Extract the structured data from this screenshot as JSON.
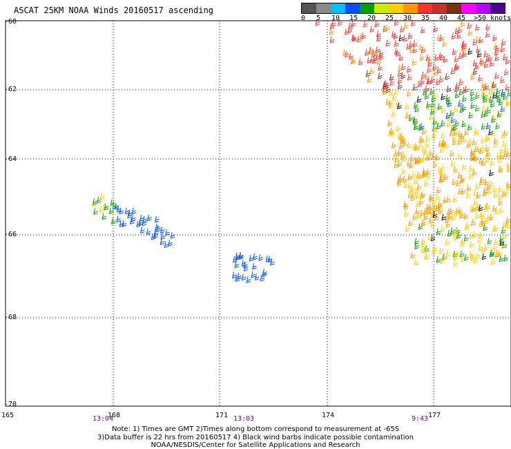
{
  "title": "ASCAT 25KM NOAA Winds 20160517 ascending",
  "colors": {
    "bands": [
      "#555555",
      "#8a8a8a",
      "#00bfff",
      "#0050ff",
      "#00a000",
      "#c8ee00",
      "#ffd000",
      "#ff9800",
      "#ff3030",
      "#c83030",
      "#7a3010",
      "#ff00ff",
      "#b800ff",
      "#50008a"
    ],
    "contamination": "#000000",
    "grid": "#000000"
  },
  "scale": {
    "labels": [
      "0",
      "5",
      "10",
      "15",
      "20",
      "25",
      "30",
      "35",
      "40",
      "45",
      ">50 knots"
    ],
    "unit": "knots"
  },
  "axes": {
    "lat_labels": [
      "-60",
      "-62",
      "-64",
      "-66",
      "-68",
      "-70"
    ],
    "lon_labels": [
      "165",
      "168",
      "171",
      "174",
      "177"
    ]
  },
  "times": [
    "13:04",
    "13:03",
    "9:43"
  ],
  "notes": [
    "Note: 1) Times are GMT 2)Times along bottom correspond to measurement at -65S",
    "3)Data buffer is 22 hrs from 20160517 4) Black wind barbs indicate possible contamination",
    "NOAA/NESDIS/Center for Satellite Applications and Research"
  ],
  "swaths": [
    {
      "name": "west-small",
      "lon": [
        167.4,
        169.5
      ],
      "lat": [
        -65.2,
        -66.0
      ],
      "dominant_band": "blue"
    },
    {
      "name": "central-small",
      "lon": [
        171.3,
        172.6
      ],
      "lat": [
        -66.7,
        -67.0
      ],
      "dominant_band": "blue"
    },
    {
      "name": "east-main",
      "lon": [
        174.5,
        178.5
      ],
      "lat": [
        -60.0,
        -66.5
      ],
      "dominant_band": "orange-red"
    }
  ]
}
